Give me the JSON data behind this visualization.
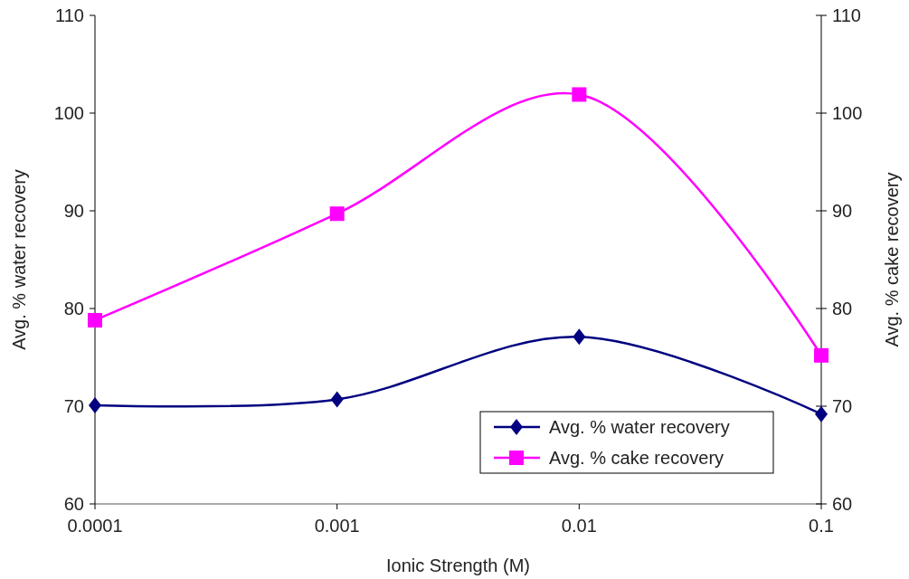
{
  "chart_data": {
    "type": "line",
    "xlabel": "Ionic Strength (M)",
    "ylabel": "Avg. % water recovery",
    "y2label": "Avg. % cake recovery",
    "x": [
      0.0001,
      0.001,
      0.01,
      0.1
    ],
    "log": "x",
    "xlim": [
      0.0001,
      0.1
    ],
    "xticks": [
      0.0001,
      0.001,
      0.01,
      0.1
    ],
    "ylim": [
      60,
      110
    ],
    "yticks": [
      60,
      70,
      80,
      90,
      100,
      110
    ],
    "y2lim": [
      60,
      110
    ],
    "y2ticks": [
      60,
      70,
      80,
      90,
      100,
      110
    ],
    "legend": "bottom right",
    "grid": false,
    "series": [
      {
        "name": "Avg. % water recovery",
        "color": "#000080",
        "marker": "diamond",
        "values": [
          70.1,
          70.7,
          77.1,
          69.2
        ]
      },
      {
        "name": "Avg. % cake recovery",
        "color": "#ff00ff",
        "marker": "square",
        "values": [
          78.8,
          89.7,
          101.9,
          75.2
        ]
      }
    ]
  }
}
